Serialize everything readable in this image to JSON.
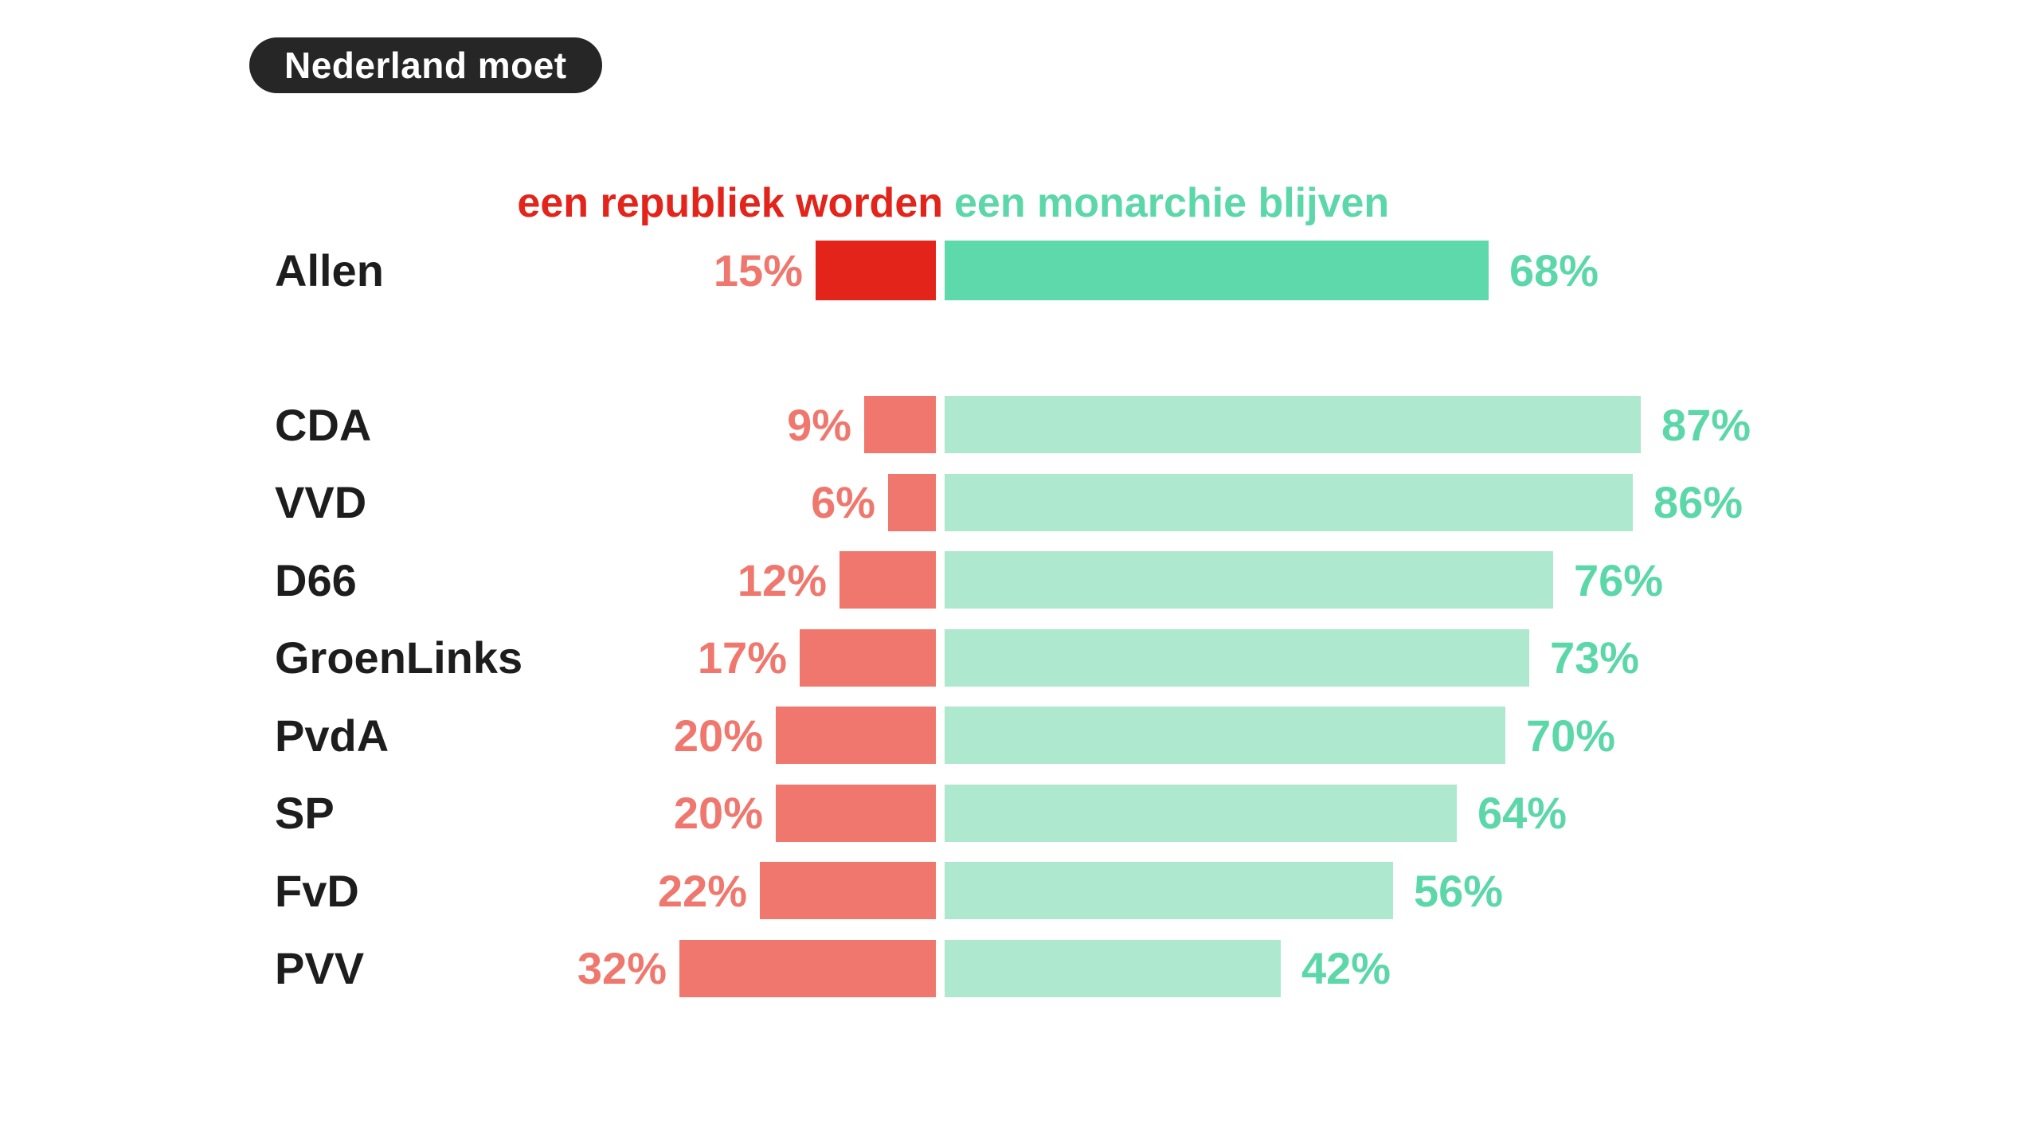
{
  "badge": {
    "label": "Nederland moet"
  },
  "legend": {
    "republic_label": "een republiek worden",
    "monarchy_label": "een monarchie blijven"
  },
  "colors": {
    "background": "#ffffff",
    "badge_bg": "#262626",
    "badge_text": "#ffffff",
    "category_label_text": "#1d1d1d",
    "republic_strong": "#e3241b",
    "republic_light": "#ef776d",
    "republic_value_text": "#f0776d",
    "republic_legend_text": "#e3241b",
    "monarchy_strong": "#5ed9ab",
    "monarchy_light": "#ade8cf",
    "monarchy_value_text": "#5bd7a9",
    "monarchy_legend_text": "#5bd7a9"
  },
  "chart_data": {
    "type": "bar",
    "orientation": "horizontal_diverging",
    "title": "Nederland moet",
    "subtitle": "",
    "legend_position": "top",
    "grid": false,
    "value_suffix": "%",
    "xlim": [
      0,
      100
    ],
    "highlight_category": "Allen",
    "categories": [
      "Allen",
      "CDA",
      "VVD",
      "D66",
      "GroenLinks",
      "PvdA",
      "SP",
      "FvD",
      "PVV"
    ],
    "series": [
      {
        "name": "een republiek worden",
        "values": [
          15,
          9,
          6,
          12,
          17,
          20,
          20,
          22,
          32
        ]
      },
      {
        "name": "een monarchie blijven",
        "values": [
          68,
          87,
          86,
          76,
          73,
          70,
          64,
          56,
          42
        ]
      }
    ]
  }
}
